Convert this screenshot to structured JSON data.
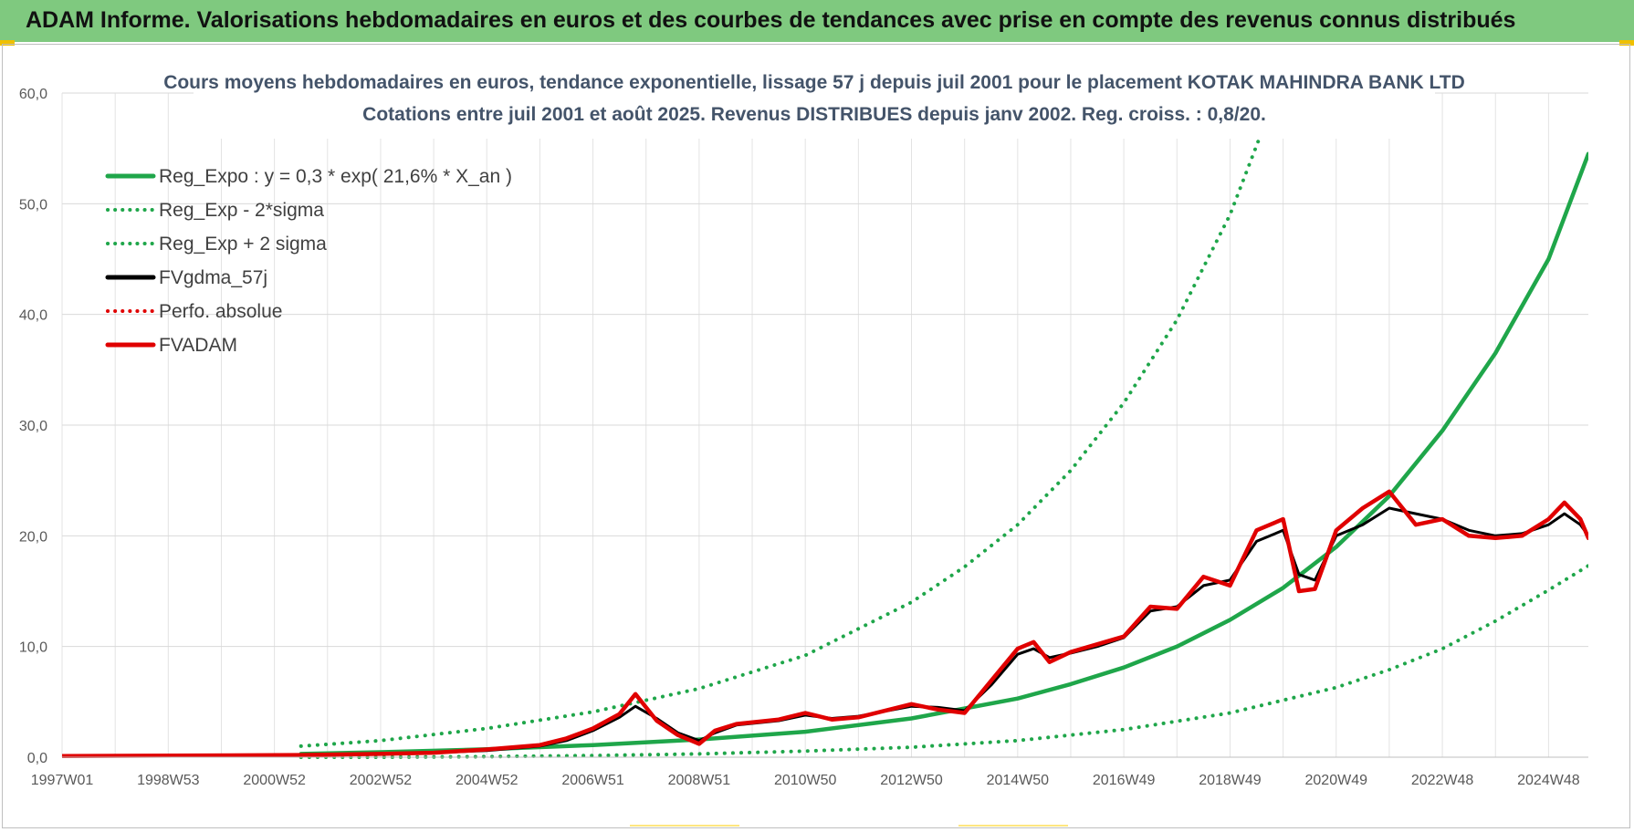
{
  "banner": {
    "title": "ADAM Informe. Valorisations hebdomadaires en euros et des courbes de tendances avec prise en compte des revenus connus distribués",
    "color": "#7fc97f"
  },
  "chart_data": {
    "type": "line",
    "title": "Cours moyens hebdomadaires en euros, tendance exponentielle, lissage 57 j depuis juil 2001 pour le placement KOTAK MAHINDRA BANK LTD",
    "subtitle": "Cotations entre juil 2001 et août 2025. Revenus DISTRIBUES depuis janv 2002. Reg. croiss. : 0,8/20.",
    "xlabel": "",
    "ylabel": "",
    "ylim": [
      0,
      60
    ],
    "xlim": [
      1997.0,
      2025.75
    ],
    "y_ticks": [
      "0,0",
      "10,0",
      "20,0",
      "30,0",
      "40,0",
      "50,0",
      "60,0"
    ],
    "x_ticks": [
      {
        "label": "1997W01",
        "x": 1997.0
      },
      {
        "label": "1998W53",
        "x": 1999.0
      },
      {
        "label": "2000W52",
        "x": 2001.0
      },
      {
        "label": "2002W52",
        "x": 2003.0
      },
      {
        "label": "2004W52",
        "x": 2005.0
      },
      {
        "label": "2006W51",
        "x": 2007.0
      },
      {
        "label": "2008W51",
        "x": 2009.0
      },
      {
        "label": "2010W50",
        "x": 2011.0
      },
      {
        "label": "2012W50",
        "x": 2013.0
      },
      {
        "label": "2014W50",
        "x": 2015.0
      },
      {
        "label": "2016W49",
        "x": 2017.0
      },
      {
        "label": "2018W49",
        "x": 2019.0
      },
      {
        "label": "2020W49",
        "x": 2021.0
      },
      {
        "label": "2022W48",
        "x": 2023.0
      },
      {
        "label": "2024W48",
        "x": 2025.0
      }
    ],
    "grid": true,
    "legend_position": "top-left",
    "series": [
      {
        "name": "Reg_Expo : y = 0,3 * exp( 21,6% *  X_an )",
        "color": "#1fa64a",
        "style": "solid",
        "x": [
          2001.5,
          2003,
          2005,
          2007,
          2009,
          2011,
          2013,
          2015,
          2016,
          2017,
          2018,
          2019,
          2020,
          2021,
          2022,
          2023,
          2024,
          2025,
          2025.75
        ],
        "y": [
          0.3,
          0.45,
          0.72,
          1.1,
          1.6,
          2.3,
          3.5,
          5.3,
          6.6,
          8.1,
          10.0,
          12.4,
          15.3,
          19.0,
          23.6,
          29.5,
          36.5,
          45.0,
          54.5
        ]
      },
      {
        "name": "Reg_Exp - 2*sigma",
        "color": "#1fa64a",
        "style": "dotted",
        "x": [
          2001.5,
          2003,
          2005,
          2007,
          2009,
          2011,
          2013,
          2015,
          2017,
          2019,
          2021,
          2022,
          2023,
          2024,
          2025,
          2025.75
        ],
        "y": [
          0.0,
          0.0,
          0.05,
          0.15,
          0.3,
          0.55,
          0.9,
          1.5,
          2.5,
          4.0,
          6.3,
          7.9,
          9.8,
          12.3,
          15.1,
          17.3
        ]
      },
      {
        "name": "Reg_Exp + 2 sigma",
        "color": "#1fa64a",
        "style": "dotted",
        "x": [
          2001.5,
          2003,
          2005,
          2007,
          2009,
          2011,
          2013,
          2014,
          2015,
          2016,
          2017,
          2018,
          2019,
          2019.6
        ],
        "y": [
          1.0,
          1.5,
          2.6,
          4.1,
          6.2,
          9.2,
          14.0,
          17.2,
          21.0,
          25.9,
          32.0,
          39.5,
          49.0,
          56.5
        ]
      },
      {
        "name": "FVgdma_57j",
        "color": "#000000",
        "style": "solid",
        "x": [
          1997.0,
          2001.5,
          2003,
          2004,
          2005,
          2006,
          2006.5,
          2007,
          2007.5,
          2007.8,
          2008.2,
          2008.6,
          2009,
          2009.3,
          2009.7,
          2010.5,
          2011,
          2011.5,
          2012,
          2013,
          2013.5,
          2014,
          2014.5,
          2015,
          2015.3,
          2015.6,
          2016,
          2016.5,
          2017,
          2017.5,
          2018,
          2018.5,
          2019,
          2019.5,
          2020,
          2020.3,
          2020.6,
          2021,
          2021.5,
          2022,
          2022.5,
          2023,
          2023.5,
          2024,
          2024.5,
          2025,
          2025.3,
          2025.6,
          2025.75
        ],
        "y": [
          0.1,
          0.2,
          0.3,
          0.4,
          0.6,
          1.0,
          1.5,
          2.4,
          3.6,
          4.6,
          3.5,
          2.2,
          1.5,
          2.2,
          2.9,
          3.3,
          3.8,
          3.5,
          3.7,
          4.6,
          4.5,
          4.2,
          6.5,
          9.3,
          9.8,
          9.0,
          9.4,
          10.0,
          10.8,
          13.2,
          13.6,
          15.5,
          16.0,
          19.5,
          20.5,
          16.5,
          16.0,
          20.0,
          21.0,
          22.5,
          22.0,
          21.5,
          20.5,
          20.0,
          20.2,
          21.0,
          22.0,
          21.0,
          20.0
        ]
      },
      {
        "name": "Perfo. absolue",
        "color": "#e00000",
        "style": "dotted",
        "x": [],
        "y": []
      },
      {
        "name": "FVADAM",
        "color": "#e00000",
        "style": "solid",
        "x": [
          1997.0,
          2001.5,
          2003,
          2004,
          2005,
          2006,
          2006.5,
          2007,
          2007.5,
          2007.8,
          2008.2,
          2008.6,
          2009,
          2009.3,
          2009.7,
          2010.5,
          2011,
          2011.5,
          2012,
          2013,
          2013.5,
          2014,
          2014.5,
          2015,
          2015.3,
          2015.6,
          2016,
          2016.5,
          2017,
          2017.5,
          2018,
          2018.5,
          2019,
          2019.5,
          2020,
          2020.3,
          2020.6,
          2021,
          2021.5,
          2022,
          2022.5,
          2023,
          2023.5,
          2024,
          2024.5,
          2025,
          2025.3,
          2025.6,
          2025.75
        ],
        "y": [
          0.1,
          0.2,
          0.3,
          0.4,
          0.7,
          1.1,
          1.7,
          2.6,
          3.9,
          5.7,
          3.3,
          2.0,
          1.2,
          2.4,
          3.0,
          3.4,
          4.0,
          3.4,
          3.6,
          4.8,
          4.3,
          4.0,
          6.9,
          9.8,
          10.4,
          8.6,
          9.5,
          10.2,
          10.9,
          13.6,
          13.4,
          16.3,
          15.5,
          20.5,
          21.5,
          15.0,
          15.2,
          20.5,
          22.5,
          24.0,
          21.0,
          21.5,
          20.0,
          19.8,
          20.0,
          21.5,
          23.0,
          21.5,
          19.8
        ]
      }
    ]
  }
}
